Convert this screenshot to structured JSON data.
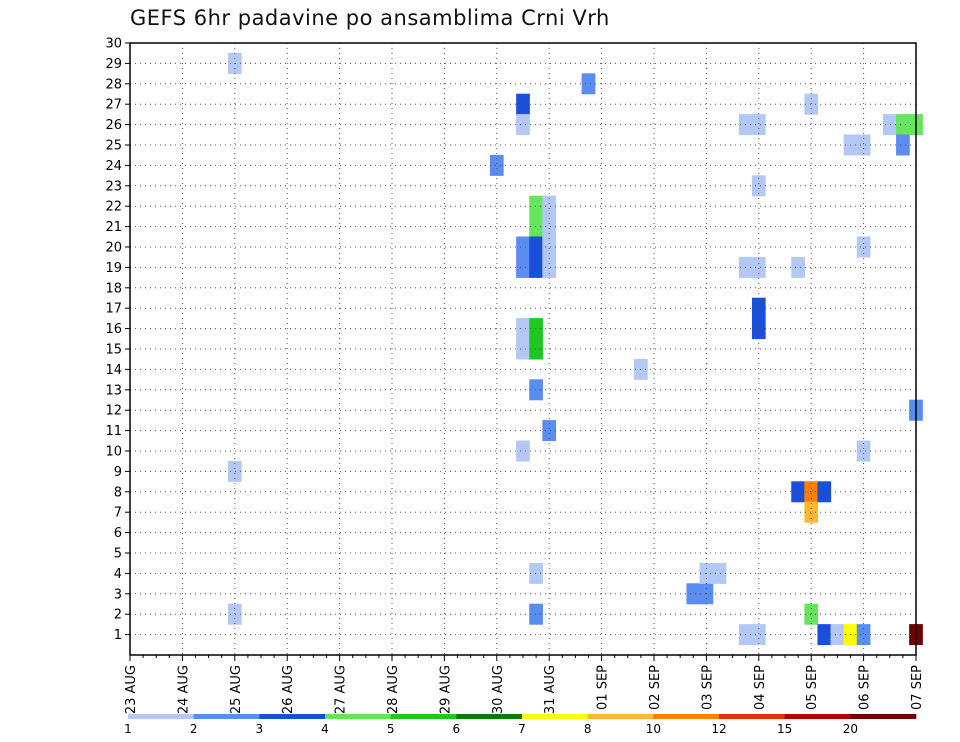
{
  "chart_data": {
    "type": "heatmap",
    "title": "GEFS 6hr padavine po ansamblima Crni Vrh",
    "xlabel": "",
    "ylabel": "",
    "x_tick_labels": [
      "23 AUG",
      "24 AUG",
      "25 AUG",
      "26 AUG",
      "27 AUG",
      "28 AUG",
      "29 AUG",
      "30 AUG",
      "31 AUG",
      "01 SEP",
      "02 SEP",
      "03 SEP",
      "04 SEP",
      "05 SEP",
      "06 SEP",
      "07 SEP"
    ],
    "x_unit": "days from 23 AUG (6-hourly steps)",
    "y_ticks": [
      1,
      2,
      3,
      4,
      5,
      6,
      7,
      8,
      9,
      10,
      11,
      12,
      13,
      14,
      15,
      16,
      17,
      18,
      19,
      20,
      21,
      22,
      23,
      24,
      25,
      26,
      27,
      28,
      29,
      30
    ],
    "ylim": [
      0,
      30
    ],
    "xlim": [
      0,
      15
    ],
    "grid": true,
    "colorbar": {
      "labels": [
        "1",
        "2",
        "3",
        "4",
        "5",
        "6",
        "7",
        "8",
        "10",
        "12",
        "15",
        "20"
      ],
      "colors": [
        "#b3c8f5",
        "#5b8cf0",
        "#1a4fdb",
        "#66e55c",
        "#1ec81e",
        "#0b7a0b",
        "#ffff00",
        "#ffb833",
        "#ff8000",
        "#e03010",
        "#b00000",
        "#700000"
      ]
    },
    "cells": [
      {
        "x": 2.0,
        "y": 29,
        "v": 1
      },
      {
        "x": 2.0,
        "y": 9,
        "v": 1
      },
      {
        "x": 2.0,
        "y": 2,
        "v": 1
      },
      {
        "x": 7.0,
        "y": 24,
        "v": 2
      },
      {
        "x": 7.5,
        "y": 27,
        "v": 3
      },
      {
        "x": 7.5,
        "y": 26,
        "v": 1
      },
      {
        "x": 7.5,
        "y": 20,
        "v": 2
      },
      {
        "x": 7.5,
        "y": 19,
        "v": 2
      },
      {
        "x": 7.5,
        "y": 16,
        "v": 1
      },
      {
        "x": 7.5,
        "y": 15,
        "v": 1
      },
      {
        "x": 7.5,
        "y": 10,
        "v": 1
      },
      {
        "x": 7.75,
        "y": 22,
        "v": 4
      },
      {
        "x": 7.75,
        "y": 21,
        "v": 4
      },
      {
        "x": 7.75,
        "y": 20,
        "v": 3
      },
      {
        "x": 7.75,
        "y": 19,
        "v": 3
      },
      {
        "x": 7.75,
        "y": 16,
        "v": 5
      },
      {
        "x": 7.75,
        "y": 15,
        "v": 5
      },
      {
        "x": 7.75,
        "y": 13,
        "v": 2
      },
      {
        "x": 7.75,
        "y": 4,
        "v": 1
      },
      {
        "x": 7.75,
        "y": 2,
        "v": 2
      },
      {
        "x": 8.0,
        "y": 22,
        "v": 1
      },
      {
        "x": 8.0,
        "y": 21,
        "v": 1
      },
      {
        "x": 8.0,
        "y": 20,
        "v": 1
      },
      {
        "x": 8.0,
        "y": 19,
        "v": 1
      },
      {
        "x": 8.0,
        "y": 11,
        "v": 2
      },
      {
        "x": 8.75,
        "y": 28,
        "v": 2
      },
      {
        "x": 9.75,
        "y": 14,
        "v": 1
      },
      {
        "x": 10.75,
        "y": 3,
        "v": 2
      },
      {
        "x": 11.0,
        "y": 3,
        "v": 2
      },
      {
        "x": 11.0,
        "y": 4,
        "v": 1
      },
      {
        "x": 11.25,
        "y": 4,
        "v": 1
      },
      {
        "x": 11.75,
        "y": 26,
        "v": 1
      },
      {
        "x": 12.0,
        "y": 26,
        "v": 1
      },
      {
        "x": 12.0,
        "y": 23,
        "v": 1
      },
      {
        "x": 11.75,
        "y": 19,
        "v": 1
      },
      {
        "x": 12.0,
        "y": 19,
        "v": 1
      },
      {
        "x": 12.0,
        "y": 17,
        "v": 3
      },
      {
        "x": 12.0,
        "y": 16,
        "v": 3
      },
      {
        "x": 11.75,
        "y": 1,
        "v": 1
      },
      {
        "x": 12.0,
        "y": 1,
        "v": 1
      },
      {
        "x": 12.75,
        "y": 19,
        "v": 1
      },
      {
        "x": 12.75,
        "y": 8,
        "v": 3
      },
      {
        "x": 13.0,
        "y": 27,
        "v": 1
      },
      {
        "x": 13.0,
        "y": 8,
        "v": 10
      },
      {
        "x": 13.0,
        "y": 7,
        "v": 8
      },
      {
        "x": 13.0,
        "y": 2,
        "v": 4
      },
      {
        "x": 13.25,
        "y": 8,
        "v": 3
      },
      {
        "x": 13.25,
        "y": 1,
        "v": 3
      },
      {
        "x": 13.5,
        "y": 1,
        "v": 1
      },
      {
        "x": 13.75,
        "y": 1,
        "v": 7
      },
      {
        "x": 14.0,
        "y": 1,
        "v": 2
      },
      {
        "x": 13.75,
        "y": 25,
        "v": 1
      },
      {
        "x": 14.0,
        "y": 25,
        "v": 1
      },
      {
        "x": 14.0,
        "y": 20,
        "v": 1
      },
      {
        "x": 14.0,
        "y": 10,
        "v": 1
      },
      {
        "x": 14.5,
        "y": 26,
        "v": 1
      },
      {
        "x": 14.75,
        "y": 26,
        "v": 4
      },
      {
        "x": 14.75,
        "y": 25,
        "v": 2
      },
      {
        "x": 15.0,
        "y": 26,
        "v": 4
      },
      {
        "x": 15.0,
        "y": 12,
        "v": 2
      },
      {
        "x": 15.0,
        "y": 1,
        "v": 20
      }
    ]
  }
}
